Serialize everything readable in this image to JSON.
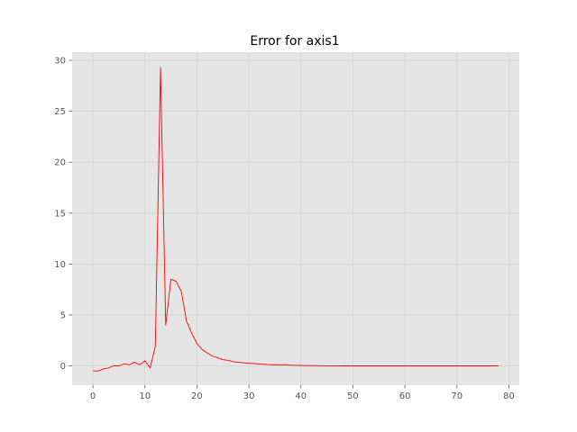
{
  "chart_data": {
    "type": "line",
    "title": "Error for axis1",
    "xlabel": "",
    "ylabel": "",
    "xlim": [
      -4,
      82
    ],
    "ylim": [
      -1.9,
      30.8
    ],
    "grid": true,
    "style": "ggplot",
    "line_color": "#ff0000",
    "background_color": "#e5e5e5",
    "grid_color": "#d2d2d2",
    "x_ticks": [
      0,
      10,
      20,
      30,
      40,
      50,
      60,
      70,
      80
    ],
    "y_ticks": [
      0,
      5,
      10,
      15,
      20,
      25,
      30
    ],
    "series": [
      {
        "x": [
          0,
          1,
          2,
          3,
          4,
          5,
          6,
          7,
          8,
          9,
          10,
          11,
          12,
          13,
          14,
          15,
          16,
          17,
          18,
          19,
          20,
          21,
          22,
          23,
          24,
          25,
          26,
          27,
          28,
          29,
          30,
          31,
          32,
          33,
          34,
          35,
          36,
          37,
          38,
          39,
          40,
          41,
          42,
          43,
          44,
          45,
          46,
          47,
          48,
          49,
          50,
          51,
          52,
          53,
          54,
          55,
          56,
          57,
          58,
          59,
          60,
          61,
          62,
          63,
          64,
          65,
          66,
          67,
          68,
          69,
          70,
          71,
          72,
          73,
          74,
          75,
          76,
          77,
          78
        ],
        "values": [
          -0.5,
          -0.5,
          -0.3,
          -0.2,
          0.0,
          0.0,
          0.2,
          0.1,
          0.35,
          0.1,
          0.5,
          -0.2,
          1.9,
          29.3,
          4.0,
          8.5,
          8.3,
          7.3,
          4.4,
          3.2,
          2.2,
          1.6,
          1.25,
          0.95,
          0.8,
          0.6,
          0.55,
          0.4,
          0.35,
          0.3,
          0.25,
          0.22,
          0.18,
          0.15,
          0.12,
          0.1,
          0.09,
          0.08,
          0.06,
          0.05,
          0.04,
          0.03,
          0.03,
          0.02,
          0.02,
          0.01,
          0.01,
          0.01,
          0.0,
          0.0,
          0.0,
          0.0,
          0.0,
          0.0,
          0.0,
          0.0,
          0.0,
          0.0,
          0.0,
          0.0,
          0.0,
          0.0,
          0.0,
          0.0,
          0.0,
          0.0,
          0.0,
          0.0,
          0.0,
          0.0,
          0.0,
          0.0,
          0.0,
          0.0,
          0.0,
          0.0,
          0.0,
          0.0,
          0.0
        ]
      }
    ]
  }
}
